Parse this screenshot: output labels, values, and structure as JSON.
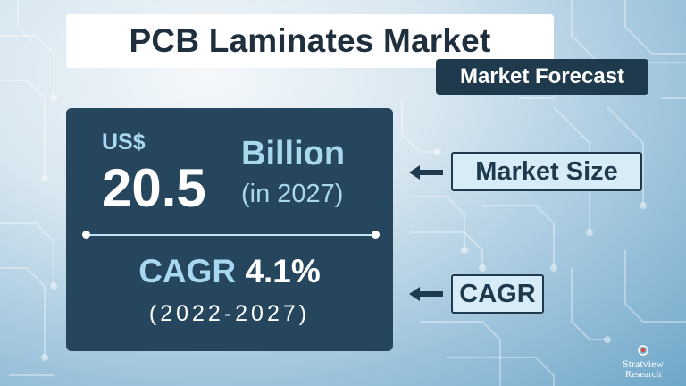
{
  "title": "PCB Laminates Market",
  "forecast_tag": "Market Forecast",
  "market_size": {
    "currency": "US$",
    "value": "20.5",
    "unit": "Billion",
    "year": "(in 2027)"
  },
  "cagr": {
    "label": "CAGR",
    "value": "4.1%",
    "period": "(2022-2027)"
  },
  "side_labels": {
    "market_size": "Market Size",
    "cagr": "CAGR"
  },
  "logo": {
    "name": "Stratview",
    "subtitle": "Research"
  },
  "icons": {
    "arrow": "arrow-left-icon",
    "logo_mark": "target-icon"
  },
  "colors": {
    "panel": "#26465e",
    "accent_text": "#a7d8f0",
    "tag_background": "#1f3a4d",
    "label_background": "#d8ecf7"
  }
}
